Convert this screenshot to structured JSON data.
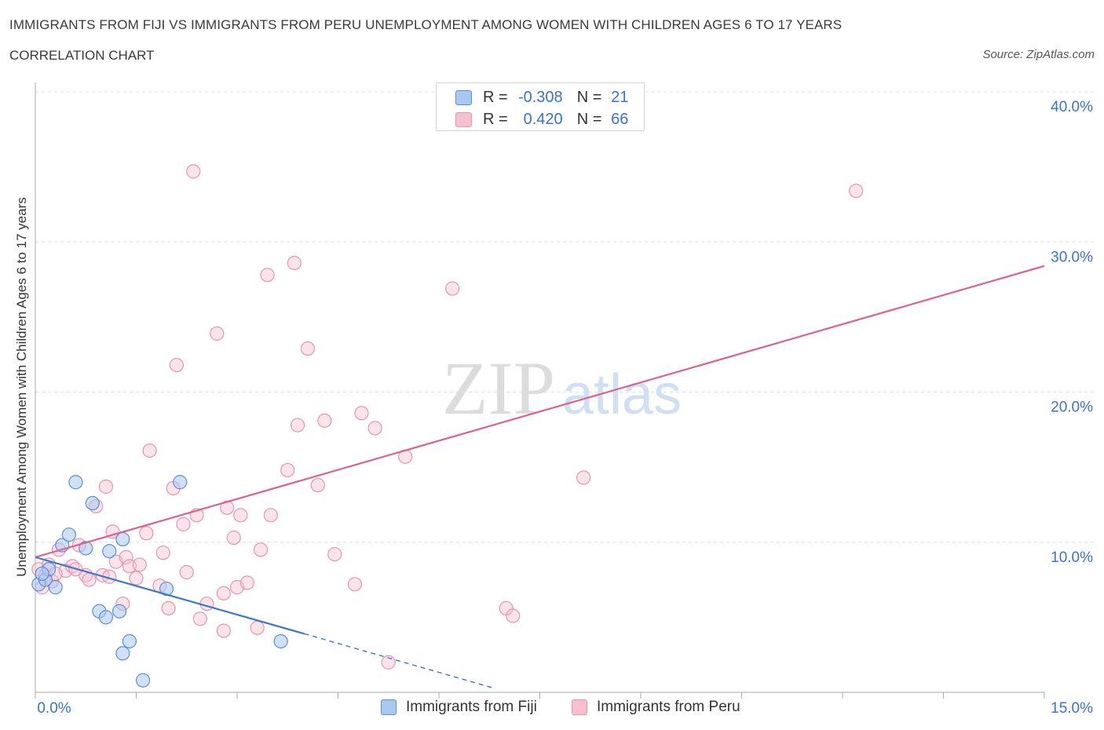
{
  "header": {
    "title": "IMMIGRANTS FROM FIJI VS IMMIGRANTS FROM PERU UNEMPLOYMENT AMONG WOMEN WITH CHILDREN AGES 6 TO 17 YEARS",
    "subtitle": "CORRELATION CHART",
    "source": "Source: ZipAtlas.com"
  },
  "watermark": {
    "zip": "ZIP",
    "atlas": "atlas"
  },
  "legend_top": {
    "rows": [
      {
        "r_label": "R =",
        "r_value": "-0.308",
        "n_label": "N =",
        "n_value": "21"
      },
      {
        "r_label": "R =",
        "r_value": "0.420",
        "n_label": "N =",
        "n_value": "66"
      }
    ]
  },
  "colors": {
    "fiji_fill": "#a9c8f0",
    "fiji_stroke": "#5b8fd6",
    "fiji_line": "#3a78cf",
    "peru_fill": "#f6c0d0",
    "peru_stroke": "#e795af",
    "peru_line": "#e0608c",
    "axis_text": "#3a73c8",
    "grid": "#dddddd"
  },
  "chart_data": {
    "type": "scatter",
    "title": "IMMIGRANTS FROM FIJI VS IMMIGRANTS FROM PERU UNEMPLOYMENT AMONG WOMEN WITH CHILDREN AGES 6 TO 17 YEARS",
    "xlabel": "",
    "ylabel": "Unemployment Among Women with Children Ages 6 to 17 years",
    "xlim": [
      0,
      15
    ],
    "ylim": [
      0,
      40
    ],
    "x_tick_labels": [
      "0.0%",
      "15.0%"
    ],
    "y_ticks": [
      10,
      20,
      30,
      40
    ],
    "y_tick_labels": [
      "10.0%",
      "20.0%",
      "30.0%",
      "40.0%"
    ],
    "grid": true,
    "series": [
      {
        "name": "Immigrants from Fiji",
        "r": -0.308,
        "n": 21,
        "points": [
          [
            0.05,
            7.2
          ],
          [
            0.15,
            7.5
          ],
          [
            0.2,
            8.2
          ],
          [
            0.3,
            7.0
          ],
          [
            0.4,
            9.8
          ],
          [
            0.5,
            10.5
          ],
          [
            0.6,
            14.0
          ],
          [
            0.75,
            9.6
          ],
          [
            0.85,
            12.6
          ],
          [
            0.95,
            5.4
          ],
          [
            1.05,
            5.0
          ],
          [
            1.1,
            9.4
          ],
          [
            1.25,
            5.4
          ],
          [
            1.3,
            10.2
          ],
          [
            1.3,
            2.6
          ],
          [
            1.4,
            3.4
          ],
          [
            1.6,
            0.8
          ],
          [
            1.95,
            6.9
          ],
          [
            2.15,
            14.0
          ],
          [
            3.65,
            3.4
          ],
          [
            0.1,
            7.9
          ]
        ],
        "trend": {
          "x_start": 0.0,
          "y_start": 9.0,
          "x_end": 4.0,
          "y_end": 3.9,
          "dashed_x_end": 6.8,
          "dashed_y_end": 0.3
        }
      },
      {
        "name": "Immigrants from Peru",
        "r": 0.42,
        "n": 66,
        "points": [
          [
            0.05,
            8.2
          ],
          [
            0.15,
            7.8
          ],
          [
            0.2,
            8.5
          ],
          [
            0.25,
            7.4
          ],
          [
            0.35,
            9.5
          ],
          [
            0.45,
            8.1
          ],
          [
            0.55,
            8.4
          ],
          [
            0.65,
            9.8
          ],
          [
            0.75,
            7.8
          ],
          [
            0.8,
            7.5
          ],
          [
            0.9,
            12.4
          ],
          [
            1.0,
            7.8
          ],
          [
            1.05,
            13.7
          ],
          [
            1.15,
            10.7
          ],
          [
            1.2,
            8.7
          ],
          [
            1.3,
            5.9
          ],
          [
            1.35,
            9.0
          ],
          [
            1.4,
            8.4
          ],
          [
            1.5,
            7.6
          ],
          [
            1.55,
            8.5
          ],
          [
            1.65,
            10.6
          ],
          [
            1.7,
            16.1
          ],
          [
            1.85,
            7.1
          ],
          [
            1.9,
            9.3
          ],
          [
            1.98,
            5.6
          ],
          [
            2.05,
            13.6
          ],
          [
            2.1,
            21.8
          ],
          [
            2.2,
            11.2
          ],
          [
            2.25,
            8.0
          ],
          [
            2.35,
            34.7
          ],
          [
            2.4,
            11.8
          ],
          [
            2.45,
            4.9
          ],
          [
            2.55,
            5.9
          ],
          [
            2.7,
            23.9
          ],
          [
            2.8,
            4.1
          ],
          [
            2.85,
            12.3
          ],
          [
            2.95,
            10.3
          ],
          [
            3.0,
            7.0
          ],
          [
            3.05,
            11.8
          ],
          [
            3.15,
            7.3
          ],
          [
            3.3,
            4.3
          ],
          [
            3.35,
            9.5
          ],
          [
            3.45,
            27.8
          ],
          [
            3.5,
            11.8
          ],
          [
            3.75,
            14.8
          ],
          [
            3.85,
            28.6
          ],
          [
            3.9,
            17.8
          ],
          [
            4.05,
            22.9
          ],
          [
            4.2,
            13.8
          ],
          [
            4.3,
            18.1
          ],
          [
            4.45,
            9.2
          ],
          [
            4.75,
            7.2
          ],
          [
            4.85,
            18.6
          ],
          [
            5.05,
            17.6
          ],
          [
            5.25,
            2.0
          ],
          [
            5.5,
            15.7
          ],
          [
            6.2,
            26.9
          ],
          [
            7.0,
            5.6
          ],
          [
            7.1,
            5.1
          ],
          [
            8.15,
            14.3
          ],
          [
            12.2,
            33.4
          ],
          [
            0.1,
            7.0
          ],
          [
            0.3,
            7.9
          ],
          [
            0.6,
            8.2
          ],
          [
            1.1,
            7.7
          ],
          [
            2.8,
            6.6
          ]
        ],
        "trend": {
          "x_start": 0.0,
          "y_start": 9.0,
          "x_end": 15.0,
          "y_end": 28.4
        }
      }
    ],
    "legend": [
      "Immigrants from Fiji",
      "Immigrants from Peru"
    ]
  }
}
